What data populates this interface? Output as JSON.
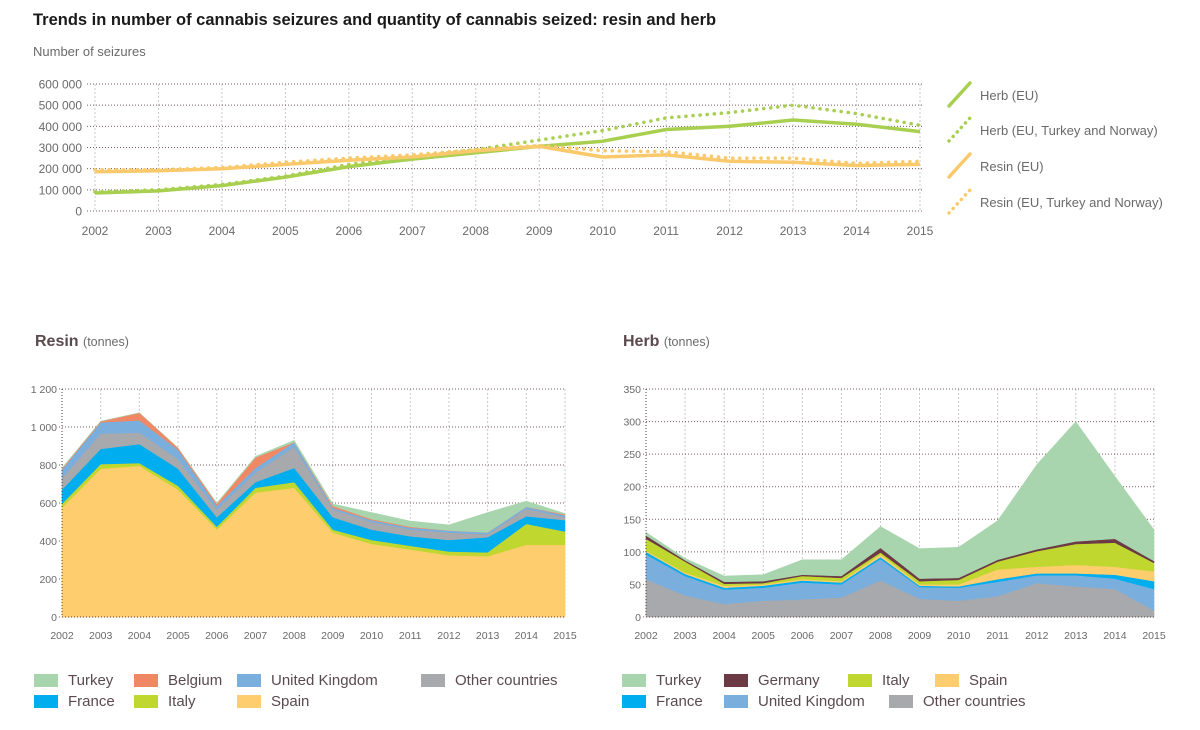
{
  "title": "Trends in number of cannabis seizures and quantity of cannabis seized: resin and herb",
  "chart_data": [
    {
      "type": "line",
      "id": "seizures",
      "title": "Number of seizures",
      "xlabel": "",
      "ylabel": "Number of seizures",
      "x": [
        2002,
        2003,
        2004,
        2005,
        2006,
        2007,
        2008,
        2009,
        2010,
        2011,
        2012,
        2013,
        2014,
        2015
      ],
      "ylim": [
        0,
        600000
      ],
      "yticks": [
        0,
        100000,
        200000,
        300000,
        400000,
        500000,
        600000
      ],
      "ytick_labels": [
        "0",
        "100 000",
        "200 000",
        "300 000",
        "400 000",
        "500 000",
        "600 000"
      ],
      "grid": true,
      "legend_position": "right",
      "series": [
        {
          "name": "Herb (EU)",
          "style": "solid",
          "color": "#a8cf4f",
          "values": [
            85000,
            95000,
            120000,
            160000,
            210000,
            245000,
            275000,
            305000,
            330000,
            385000,
            400000,
            430000,
            410000,
            375000
          ]
        },
        {
          "name": "Herb (EU, Turkey and Norway)",
          "style": "dotted",
          "color": "#a8cf4f",
          "values": [
            90000,
            100000,
            125000,
            165000,
            220000,
            255000,
            290000,
            335000,
            380000,
            440000,
            465000,
            500000,
            460000,
            405000
          ]
        },
        {
          "name": "Resin (EU)",
          "style": "solid",
          "color": "#f9c96b",
          "values": [
            185000,
            190000,
            200000,
            220000,
            240000,
            255000,
            285000,
            305000,
            255000,
            265000,
            235000,
            230000,
            215000,
            220000
          ]
        },
        {
          "name": "Resin (EU, Turkey and Norway)",
          "style": "dotted",
          "color": "#f9c96b",
          "values": [
            195000,
            195000,
            205000,
            230000,
            250000,
            265000,
            290000,
            310000,
            285000,
            280000,
            250000,
            250000,
            225000,
            235000
          ]
        }
      ]
    },
    {
      "type": "area",
      "id": "resin",
      "title": "Resin",
      "unit": "(tonnes)",
      "x": [
        2002,
        2003,
        2004,
        2005,
        2006,
        2007,
        2008,
        2009,
        2010,
        2011,
        2012,
        2013,
        2014,
        2015
      ],
      "ylim": [
        0,
        1200
      ],
      "yticks": [
        0,
        200,
        400,
        600,
        800,
        1000,
        1200
      ],
      "ytick_labels": [
        "0",
        "200",
        "400",
        "600",
        "800",
        "1 000",
        "1 200"
      ],
      "grid": true,
      "stacked": true,
      "legend_position": "bottom",
      "series": [
        {
          "name": "Spain",
          "color": "#fdcd6e",
          "values": [
            575,
            780,
            795,
            670,
            460,
            655,
            680,
            445,
            385,
            355,
            325,
            320,
            380,
            380
          ]
        },
        {
          "name": "Italy",
          "color": "#c0d72f",
          "values": [
            20,
            25,
            15,
            20,
            15,
            25,
            30,
            15,
            20,
            20,
            20,
            20,
            110,
            70
          ]
        },
        {
          "name": "France",
          "color": "#00aeef",
          "values": [
            75,
            80,
            100,
            90,
            50,
            30,
            75,
            65,
            55,
            50,
            60,
            80,
            40,
            60
          ]
        },
        {
          "name": "Other countries",
          "color": "#a7a9ac",
          "values": [
            60,
            80,
            60,
            50,
            40,
            50,
            110,
            40,
            40,
            35,
            40,
            15,
            40,
            15
          ]
        },
        {
          "name": "United Kingdom",
          "color": "#7aaedd",
          "values": [
            45,
            60,
            65,
            50,
            20,
            25,
            25,
            10,
            10,
            10,
            10,
            10,
            10,
            10
          ]
        },
        {
          "name": "Belgium",
          "color": "#f08865",
          "values": [
            5,
            5,
            40,
            10,
            10,
            55,
            0,
            10,
            5,
            5,
            0,
            0,
            0,
            5
          ]
        },
        {
          "name": "Turkey",
          "color": "#a8d5ad",
          "values": [
            5,
            0,
            0,
            0,
            5,
            5,
            10,
            10,
            35,
            30,
            30,
            105,
            30,
            5
          ]
        }
      ],
      "legend_order": [
        "Turkey",
        "Belgium",
        "United Kingdom",
        "Other countries",
        "France",
        "Italy",
        "Spain"
      ]
    },
    {
      "type": "area",
      "id": "herb",
      "title": "Herb",
      "unit": "(tonnes)",
      "x": [
        2002,
        2003,
        2004,
        2005,
        2006,
        2007,
        2008,
        2009,
        2010,
        2011,
        2012,
        2013,
        2014,
        2015
      ],
      "ylim": [
        0,
        350
      ],
      "yticks": [
        0,
        50,
        100,
        150,
        200,
        250,
        300,
        350
      ],
      "ytick_labels": [
        "0",
        "50",
        "100",
        "150",
        "200",
        "250",
        "300",
        "350"
      ],
      "grid": true,
      "stacked": true,
      "legend_position": "bottom",
      "series": [
        {
          "name": "Other countries",
          "color": "#a7a9ac",
          "values": [
            58,
            33,
            20,
            25,
            27,
            30,
            56,
            28,
            25,
            32,
            52,
            47,
            43,
            10
          ]
        },
        {
          "name": "United Kingdom",
          "color": "#7aaedd",
          "values": [
            38,
            30,
            22,
            20,
            26,
            20,
            33,
            18,
            20,
            22,
            12,
            17,
            16,
            33
          ]
        },
        {
          "name": "France",
          "color": "#00aeef",
          "values": [
            4,
            3,
            3,
            3,
            3,
            3,
            3,
            2,
            2,
            4,
            3,
            3,
            6,
            12
          ]
        },
        {
          "name": "Spain",
          "color": "#fdcd6e",
          "values": [
            2,
            2,
            3,
            2,
            2,
            2,
            4,
            2,
            3,
            15,
            10,
            13,
            12,
            15
          ]
        },
        {
          "name": "Italy",
          "color": "#c0d72f",
          "values": [
            18,
            17,
            3,
            2,
            5,
            5,
            3,
            5,
            7,
            12,
            24,
            32,
            37,
            13
          ]
        },
        {
          "name": "Germany",
          "color": "#6b3a45",
          "values": [
            5,
            2,
            3,
            3,
            2,
            3,
            7,
            4,
            3,
            3,
            3,
            4,
            6,
            3
          ]
        },
        {
          "name": "Turkey",
          "color": "#a8d5ad",
          "values": [
            5,
            3,
            9,
            10,
            23,
            25,
            33,
            46,
            47,
            60,
            130,
            184,
            96,
            48
          ]
        }
      ],
      "legend_order": [
        "Turkey",
        "Germany",
        "Italy",
        "Spain",
        "France",
        "United Kingdom",
        "Other countries"
      ]
    }
  ]
}
